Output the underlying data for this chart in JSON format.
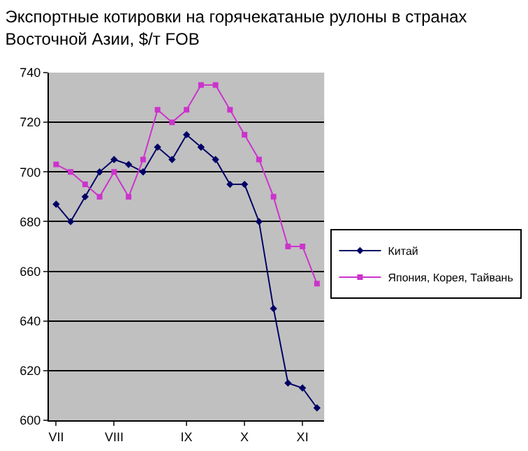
{
  "chart_data": {
    "type": "line",
    "title": "Экспортные котировки на горячекатаные рулоны в странах Восточной Азии, $/т FOB",
    "categories": [
      "VII",
      null,
      null,
      null,
      "VIII",
      null,
      null,
      null,
      null,
      "IX",
      null,
      null,
      null,
      "X",
      null,
      null,
      null,
      "XI",
      null
    ],
    "series": [
      {
        "name": "Китай",
        "color": "#000066",
        "marker": "diamond",
        "values": [
          687,
          680,
          690,
          700,
          705,
          703,
          700,
          710,
          705,
          715,
          710,
          705,
          695,
          695,
          680,
          645,
          615,
          613,
          605
        ]
      },
      {
        "name": "Япония, Корея, Тайвань",
        "color": "#cc33cc",
        "marker": "square",
        "values": [
          703,
          700,
          695,
          690,
          700,
          690,
          705,
          725,
          720,
          725,
          735,
          735,
          725,
          715,
          705,
          690,
          670,
          670,
          655
        ]
      }
    ],
    "ylim": [
      600,
      740
    ],
    "yticks": [
      600,
      620,
      640,
      660,
      680,
      700,
      720,
      740
    ],
    "grid": "y",
    "legend": "right"
  }
}
